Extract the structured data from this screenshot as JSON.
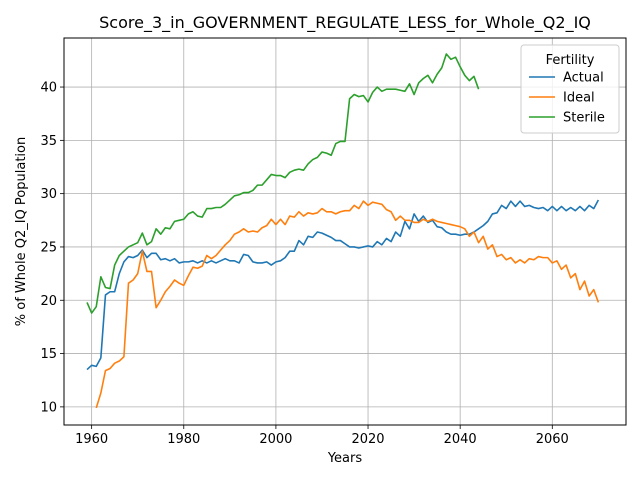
{
  "chart_data": {
    "type": "line",
    "title": "Score_3_in_GOVERNMENT_REGULATE_LESS_for_Whole_Q2_IQ",
    "xlabel": "Years",
    "ylabel": "% of Whole Q2_IQ Population",
    "xlim": [
      1954,
      2076
    ],
    "ylim": [
      8.3,
      44.6
    ],
    "x_ticks": [
      1960,
      1980,
      2000,
      2020,
      2040,
      2060
    ],
    "y_ticks": [
      10,
      15,
      20,
      25,
      30,
      35,
      40
    ],
    "grid": true,
    "legend": {
      "title": "Fertility",
      "placement": "top-right"
    },
    "series": [
      {
        "name": "Actual",
        "color": "#1f77b4",
        "points": [
          [
            1959,
            13.5
          ],
          [
            1960,
            13.9
          ],
          [
            1961,
            13.8
          ],
          [
            1962,
            14.6
          ],
          [
            1963,
            20.5
          ],
          [
            1964,
            20.8
          ],
          [
            1965,
            20.8
          ],
          [
            1966,
            22.5
          ],
          [
            1967,
            23.6
          ],
          [
            1968,
            24.1
          ],
          [
            1969,
            24.0
          ],
          [
            1970,
            24.2
          ],
          [
            1971,
            24.7
          ],
          [
            1972,
            24.0
          ],
          [
            1973,
            24.4
          ],
          [
            1974,
            24.4
          ],
          [
            1975,
            23.8
          ],
          [
            1976,
            23.9
          ],
          [
            1977,
            23.7
          ],
          [
            1978,
            23.9
          ],
          [
            1979,
            23.5
          ],
          [
            1980,
            23.6
          ],
          [
            1981,
            23.6
          ],
          [
            1982,
            23.7
          ],
          [
            1983,
            23.5
          ],
          [
            1984,
            23.7
          ],
          [
            1985,
            23.5
          ],
          [
            1986,
            23.7
          ],
          [
            1987,
            23.5
          ],
          [
            1988,
            23.7
          ],
          [
            1989,
            23.9
          ],
          [
            1990,
            23.7
          ],
          [
            1991,
            23.7
          ],
          [
            1992,
            23.5
          ],
          [
            1993,
            24.3
          ],
          [
            1994,
            24.2
          ],
          [
            1995,
            23.6
          ],
          [
            1996,
            23.5
          ],
          [
            1997,
            23.5
          ],
          [
            1998,
            23.6
          ],
          [
            1999,
            23.3
          ],
          [
            2000,
            23.6
          ],
          [
            2001,
            23.7
          ],
          [
            2002,
            24.0
          ],
          [
            2003,
            24.6
          ],
          [
            2004,
            24.6
          ],
          [
            2005,
            25.6
          ],
          [
            2006,
            25.2
          ],
          [
            2007,
            26.0
          ],
          [
            2008,
            25.9
          ],
          [
            2009,
            26.4
          ],
          [
            2010,
            26.3
          ],
          [
            2011,
            26.1
          ],
          [
            2012,
            25.9
          ],
          [
            2013,
            25.6
          ],
          [
            2014,
            25.6
          ],
          [
            2015,
            25.3
          ],
          [
            2016,
            25.0
          ],
          [
            2017,
            25.0
          ],
          [
            2018,
            24.9
          ],
          [
            2019,
            25.0
          ],
          [
            2020,
            25.1
          ],
          [
            2021,
            25.0
          ],
          [
            2022,
            25.5
          ],
          [
            2023,
            25.2
          ],
          [
            2024,
            25.8
          ],
          [
            2025,
            25.5
          ],
          [
            2026,
            26.4
          ],
          [
            2027,
            26.0
          ],
          [
            2028,
            27.4
          ],
          [
            2029,
            26.7
          ],
          [
            2030,
            28.1
          ],
          [
            2031,
            27.4
          ],
          [
            2032,
            27.9
          ],
          [
            2033,
            27.3
          ],
          [
            2034,
            27.5
          ],
          [
            2035,
            26.9
          ],
          [
            2036,
            26.8
          ],
          [
            2037,
            26.4
          ],
          [
            2038,
            26.2
          ],
          [
            2039,
            26.2
          ],
          [
            2040,
            26.1
          ],
          [
            2041,
            26.2
          ],
          [
            2042,
            26.2
          ],
          [
            2043,
            26.4
          ],
          [
            2044,
            26.7
          ],
          [
            2045,
            27.0
          ],
          [
            2046,
            27.4
          ],
          [
            2047,
            28.1
          ],
          [
            2048,
            28.2
          ],
          [
            2049,
            28.9
          ],
          [
            2050,
            28.6
          ],
          [
            2051,
            29.3
          ],
          [
            2052,
            28.8
          ],
          [
            2053,
            29.3
          ],
          [
            2054,
            28.8
          ],
          [
            2055,
            28.9
          ],
          [
            2056,
            28.7
          ],
          [
            2057,
            28.6
          ],
          [
            2058,
            28.7
          ],
          [
            2059,
            28.4
          ],
          [
            2060,
            28.8
          ],
          [
            2061,
            28.4
          ],
          [
            2062,
            28.8
          ],
          [
            2063,
            28.4
          ],
          [
            2064,
            28.7
          ],
          [
            2065,
            28.4
          ],
          [
            2066,
            28.8
          ],
          [
            2067,
            28.4
          ],
          [
            2068,
            28.9
          ],
          [
            2069,
            28.6
          ],
          [
            2070,
            29.4
          ]
        ]
      },
      {
        "name": "Ideal",
        "color": "#ff7f0e",
        "points": [
          [
            1961,
            9.9
          ],
          [
            1962,
            11.3
          ],
          [
            1963,
            13.4
          ],
          [
            1964,
            13.6
          ],
          [
            1965,
            14.1
          ],
          [
            1966,
            14.3
          ],
          [
            1967,
            14.7
          ],
          [
            1968,
            21.6
          ],
          [
            1969,
            21.9
          ],
          [
            1970,
            22.5
          ],
          [
            1971,
            24.6
          ],
          [
            1972,
            22.7
          ],
          [
            1973,
            22.7
          ],
          [
            1974,
            19.3
          ],
          [
            1975,
            20.0
          ],
          [
            1976,
            20.8
          ],
          [
            1977,
            21.3
          ],
          [
            1978,
            21.9
          ],
          [
            1979,
            21.6
          ],
          [
            1980,
            21.4
          ],
          [
            1981,
            22.3
          ],
          [
            1982,
            23.1
          ],
          [
            1983,
            23.0
          ],
          [
            1984,
            23.2
          ],
          [
            1985,
            24.2
          ],
          [
            1986,
            23.9
          ],
          [
            1987,
            24.2
          ],
          [
            1988,
            24.7
          ],
          [
            1989,
            25.2
          ],
          [
            1990,
            25.6
          ],
          [
            1991,
            26.2
          ],
          [
            1992,
            26.4
          ],
          [
            1993,
            26.7
          ],
          [
            1994,
            26.4
          ],
          [
            1995,
            26.5
          ],
          [
            1996,
            26.4
          ],
          [
            1997,
            26.8
          ],
          [
            1998,
            27.0
          ],
          [
            1999,
            27.6
          ],
          [
            2000,
            27.1
          ],
          [
            2001,
            27.6
          ],
          [
            2002,
            27.1
          ],
          [
            2003,
            27.9
          ],
          [
            2004,
            27.8
          ],
          [
            2005,
            28.3
          ],
          [
            2006,
            27.9
          ],
          [
            2007,
            28.2
          ],
          [
            2008,
            28.1
          ],
          [
            2009,
            28.2
          ],
          [
            2010,
            28.6
          ],
          [
            2011,
            28.3
          ],
          [
            2012,
            28.3
          ],
          [
            2013,
            28.1
          ],
          [
            2014,
            28.3
          ],
          [
            2015,
            28.4
          ],
          [
            2016,
            28.4
          ],
          [
            2017,
            28.9
          ],
          [
            2018,
            28.6
          ],
          [
            2019,
            29.3
          ],
          [
            2020,
            28.9
          ],
          [
            2021,
            29.2
          ],
          [
            2022,
            29.1
          ],
          [
            2023,
            29.0
          ],
          [
            2024,
            28.5
          ],
          [
            2025,
            28.3
          ],
          [
            2026,
            27.5
          ],
          [
            2027,
            27.9
          ],
          [
            2028,
            27.5
          ],
          [
            2029,
            27.5
          ],
          [
            2030,
            27.3
          ],
          [
            2031,
            27.3
          ],
          [
            2032,
            27.6
          ],
          [
            2033,
            27.4
          ],
          [
            2034,
            27.6
          ],
          [
            2035,
            27.4
          ],
          [
            2036,
            27.3
          ],
          [
            2037,
            27.2
          ],
          [
            2038,
            27.1
          ],
          [
            2039,
            27.0
          ],
          [
            2040,
            26.9
          ],
          [
            2041,
            26.7
          ],
          [
            2042,
            26.0
          ],
          [
            2043,
            26.4
          ],
          [
            2044,
            25.4
          ],
          [
            2045,
            26.0
          ],
          [
            2046,
            24.8
          ],
          [
            2047,
            25.2
          ],
          [
            2048,
            24.1
          ],
          [
            2049,
            24.3
          ],
          [
            2050,
            23.8
          ],
          [
            2051,
            24.0
          ],
          [
            2052,
            23.5
          ],
          [
            2053,
            23.8
          ],
          [
            2054,
            23.5
          ],
          [
            2055,
            23.9
          ],
          [
            2056,
            23.8
          ],
          [
            2057,
            24.1
          ],
          [
            2058,
            24.0
          ],
          [
            2059,
            24.0
          ],
          [
            2060,
            23.5
          ],
          [
            2061,
            23.7
          ],
          [
            2062,
            22.9
          ],
          [
            2063,
            23.3
          ],
          [
            2064,
            22.1
          ],
          [
            2065,
            22.5
          ],
          [
            2066,
            21.0
          ],
          [
            2067,
            21.8
          ],
          [
            2068,
            20.4
          ],
          [
            2069,
            21.0
          ],
          [
            2070,
            19.8
          ]
        ]
      },
      {
        "name": "Sterile",
        "color": "#2ca02c",
        "points": [
          [
            1959,
            19.8
          ],
          [
            1960,
            18.8
          ],
          [
            1961,
            19.4
          ],
          [
            1962,
            22.2
          ],
          [
            1963,
            21.2
          ],
          [
            1964,
            21.1
          ],
          [
            1965,
            23.3
          ],
          [
            1966,
            24.2
          ],
          [
            1967,
            24.6
          ],
          [
            1968,
            25.0
          ],
          [
            1969,
            25.2
          ],
          [
            1970,
            25.4
          ],
          [
            1971,
            26.3
          ],
          [
            1972,
            25.2
          ],
          [
            1973,
            25.5
          ],
          [
            1974,
            26.7
          ],
          [
            1975,
            26.2
          ],
          [
            1976,
            26.8
          ],
          [
            1977,
            26.7
          ],
          [
            1978,
            27.4
          ],
          [
            1979,
            27.5
          ],
          [
            1980,
            27.6
          ],
          [
            1981,
            28.1
          ],
          [
            1982,
            28.3
          ],
          [
            1983,
            27.9
          ],
          [
            1984,
            27.8
          ],
          [
            1985,
            28.6
          ],
          [
            1986,
            28.6
          ],
          [
            1987,
            28.7
          ],
          [
            1988,
            28.7
          ],
          [
            1989,
            29.0
          ],
          [
            1990,
            29.4
          ],
          [
            1991,
            29.8
          ],
          [
            1992,
            29.9
          ],
          [
            1993,
            30.1
          ],
          [
            1994,
            30.1
          ],
          [
            1995,
            30.3
          ],
          [
            1996,
            30.8
          ],
          [
            1997,
            30.8
          ],
          [
            1998,
            31.3
          ],
          [
            1999,
            31.8
          ],
          [
            2000,
            31.7
          ],
          [
            2001,
            31.7
          ],
          [
            2002,
            31.5
          ],
          [
            2003,
            32.0
          ],
          [
            2004,
            32.2
          ],
          [
            2005,
            32.3
          ],
          [
            2006,
            32.2
          ],
          [
            2007,
            32.8
          ],
          [
            2008,
            33.2
          ],
          [
            2009,
            33.4
          ],
          [
            2010,
            33.9
          ],
          [
            2011,
            33.8
          ],
          [
            2012,
            33.6
          ],
          [
            2013,
            34.7
          ],
          [
            2014,
            34.9
          ],
          [
            2015,
            34.9
          ],
          [
            2016,
            38.9
          ],
          [
            2017,
            39.3
          ],
          [
            2018,
            39.1
          ],
          [
            2019,
            39.2
          ],
          [
            2020,
            38.6
          ],
          [
            2021,
            39.5
          ],
          [
            2022,
            40.0
          ],
          [
            2023,
            39.6
          ],
          [
            2024,
            39.8
          ],
          [
            2025,
            39.8
          ],
          [
            2026,
            39.8
          ],
          [
            2027,
            39.7
          ],
          [
            2028,
            39.6
          ],
          [
            2029,
            40.3
          ],
          [
            2030,
            39.3
          ],
          [
            2031,
            40.4
          ],
          [
            2032,
            40.8
          ],
          [
            2033,
            41.1
          ],
          [
            2034,
            40.4
          ],
          [
            2035,
            41.2
          ],
          [
            2036,
            41.8
          ],
          [
            2037,
            43.1
          ],
          [
            2038,
            42.6
          ],
          [
            2039,
            42.8
          ],
          [
            2040,
            41.9
          ],
          [
            2041,
            41.1
          ],
          [
            2042,
            40.6
          ],
          [
            2043,
            41.0
          ],
          [
            2044,
            39.8
          ]
        ]
      }
    ]
  }
}
